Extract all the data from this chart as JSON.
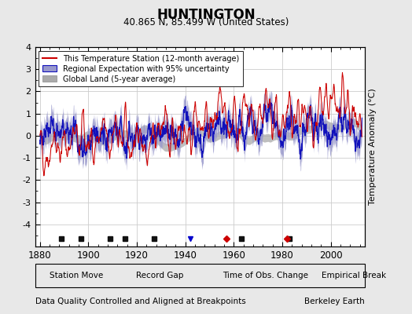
{
  "title": "HUNTINGTON",
  "subtitle": "40.865 N, 85.499 W (United States)",
  "footnote_left": "Data Quality Controlled and Aligned at Breakpoints",
  "footnote_right": "Berkeley Earth",
  "ylabel": "Temperature Anomaly (°C)",
  "xlim": [
    1878,
    2014
  ],
  "ylim": [
    -5,
    4
  ],
  "yticks": [
    -4,
    -3,
    -2,
    -1,
    0,
    1,
    2,
    3,
    4
  ],
  "xticks": [
    1880,
    1900,
    1920,
    1940,
    1960,
    1980,
    2000
  ],
  "background_color": "#e8e8e8",
  "plot_bg_color": "#ffffff",
  "grid_color": "#cccccc",
  "red_line_color": "#cc0000",
  "blue_line_color": "#1111bb",
  "blue_fill_color": "#9999cc",
  "gray_fill_color": "#aaaaaa",
  "station_move_color": "#cc0000",
  "record_gap_color": "#006600",
  "time_obs_color": "#0000cc",
  "empirical_break_color": "#111111",
  "station_moves": [
    1957,
    1982
  ],
  "time_obs_changes": [
    1942
  ],
  "empirical_breaks": [
    1889,
    1897,
    1909,
    1915,
    1927,
    1963,
    1983
  ],
  "seed": 42,
  "start_year": 1880,
  "end_year": 2012
}
